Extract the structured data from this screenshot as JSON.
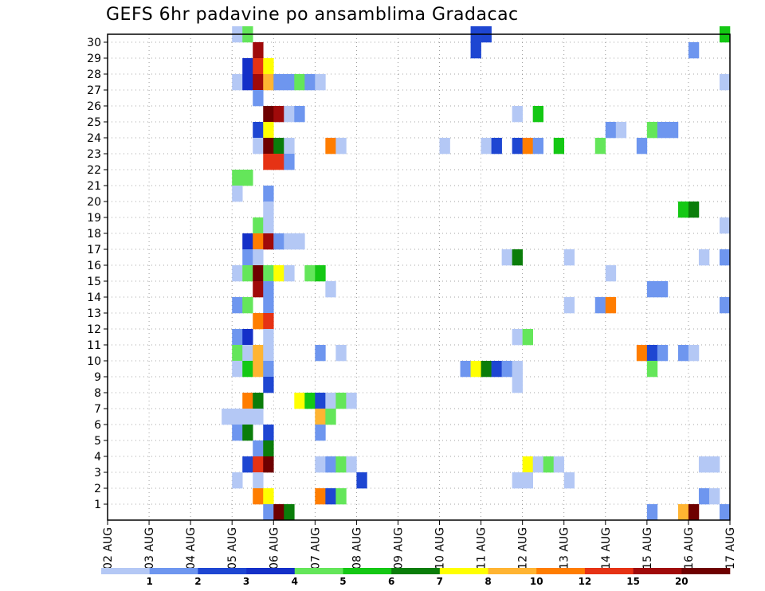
{
  "title": "GEFS 6hr padavine po ansamblima Gradacac",
  "chart_data": {
    "type": "heatmap",
    "title": "GEFS 6hr padavine po ansamblima Gradacac",
    "x_tick_labels": [
      "02 AUG",
      "03 AUG",
      "04 AUG",
      "05 AUG",
      "06 AUG",
      "07 AUG",
      "08 AUG",
      "09 AUG",
      "10 AUG",
      "11 AUG",
      "12 AUG",
      "13 AUG",
      "14 AUG",
      "15 AUG",
      "16 AUG",
      "17 AUG"
    ],
    "y_tick_labels": [
      "1",
      "2",
      "3",
      "4",
      "5",
      "6",
      "7",
      "8",
      "9",
      "10",
      "11",
      "12",
      "13",
      "14",
      "15",
      "16",
      "17",
      "18",
      "19",
      "20",
      "21",
      "22",
      "23",
      "24",
      "25",
      "26",
      "27",
      "28",
      "29",
      "30"
    ],
    "xlim": [
      "02 AUG 00Z",
      "17 AUG 00Z"
    ],
    "ylim": [
      0,
      30
    ],
    "time_step_hours": 6,
    "grid": true,
    "legend": {
      "placement": "bottom",
      "thresholds": [
        "1",
        "2",
        "3",
        "4",
        "5",
        "6",
        "7",
        "8",
        "10",
        "12",
        "15",
        "20"
      ],
      "colors": [
        "#b4c8f5",
        "#6e96ef",
        "#1e46d2",
        "#1430c8",
        "#64e65a",
        "#14c814",
        "#0a7d0a",
        "#ffff00",
        "#ffb432",
        "#ff7d00",
        "#e63214",
        "#a00a0a",
        "#6e0000"
      ]
    },
    "cells": [
      {
        "member": 30,
        "step": 12,
        "cls": 0
      },
      {
        "member": 30,
        "step": 13,
        "cls": 4
      },
      {
        "member": 30,
        "step": 35,
        "cls": 2
      },
      {
        "member": 30,
        "step": 36,
        "cls": 2
      },
      {
        "member": 30,
        "step": 59,
        "cls": 5
      },
      {
        "member": 29,
        "step": 14,
        "cls": 11
      },
      {
        "member": 29,
        "step": 35,
        "cls": 2
      },
      {
        "member": 29,
        "step": 56,
        "cls": 1
      },
      {
        "member": 28,
        "step": 13,
        "cls": 3
      },
      {
        "member": 28,
        "step": 14,
        "cls": 10
      },
      {
        "member": 28,
        "step": 15,
        "cls": 7
      },
      {
        "member": 27,
        "step": 12,
        "cls": 0
      },
      {
        "member": 27,
        "step": 13,
        "cls": 3
      },
      {
        "member": 27,
        "step": 14,
        "cls": 11
      },
      {
        "member": 27,
        "step": 15,
        "cls": 8
      },
      {
        "member": 27,
        "step": 16,
        "cls": 1
      },
      {
        "member": 27,
        "step": 17,
        "cls": 1
      },
      {
        "member": 27,
        "step": 18,
        "cls": 4
      },
      {
        "member": 27,
        "step": 19,
        "cls": 1
      },
      {
        "member": 27,
        "step": 20,
        "cls": 0
      },
      {
        "member": 27,
        "step": 59,
        "cls": 0
      },
      {
        "member": 26,
        "step": 14,
        "cls": 1
      },
      {
        "member": 25,
        "step": 15,
        "cls": 12
      },
      {
        "member": 25,
        "step": 16,
        "cls": 11
      },
      {
        "member": 25,
        "step": 17,
        "cls": 0
      },
      {
        "member": 25,
        "step": 18,
        "cls": 1
      },
      {
        "member": 25,
        "step": 39,
        "cls": 0
      },
      {
        "member": 25,
        "step": 41,
        "cls": 5
      },
      {
        "member": 24,
        "step": 14,
        "cls": 2
      },
      {
        "member": 24,
        "step": 15,
        "cls": 7
      },
      {
        "member": 24,
        "step": 48,
        "cls": 1
      },
      {
        "member": 24,
        "step": 49,
        "cls": 0
      },
      {
        "member": 24,
        "step": 52,
        "cls": 4
      },
      {
        "member": 24,
        "step": 53,
        "cls": 1
      },
      {
        "member": 24,
        "step": 54,
        "cls": 1
      },
      {
        "member": 23,
        "step": 14,
        "cls": 0
      },
      {
        "member": 23,
        "step": 15,
        "cls": 12
      },
      {
        "member": 23,
        "step": 16,
        "cls": 6
      },
      {
        "member": 23,
        "step": 17,
        "cls": 0
      },
      {
        "member": 23,
        "step": 21,
        "cls": 9
      },
      {
        "member": 23,
        "step": 22,
        "cls": 0
      },
      {
        "member": 23,
        "step": 32,
        "cls": 0
      },
      {
        "member": 23,
        "step": 36,
        "cls": 0
      },
      {
        "member": 23,
        "step": 37,
        "cls": 2
      },
      {
        "member": 23,
        "step": 39,
        "cls": 2
      },
      {
        "member": 23,
        "step": 40,
        "cls": 9
      },
      {
        "member": 23,
        "step": 41,
        "cls": 1
      },
      {
        "member": 23,
        "step": 43,
        "cls": 5
      },
      {
        "member": 23,
        "step": 47,
        "cls": 4
      },
      {
        "member": 23,
        "step": 51,
        "cls": 1
      },
      {
        "member": 22,
        "step": 15,
        "cls": 10
      },
      {
        "member": 22,
        "step": 16,
        "cls": 10
      },
      {
        "member": 22,
        "step": 17,
        "cls": 1
      },
      {
        "member": 21,
        "step": 12,
        "cls": 4
      },
      {
        "member": 21,
        "step": 13,
        "cls": 4
      },
      {
        "member": 20,
        "step": 12,
        "cls": 0
      },
      {
        "member": 20,
        "step": 15,
        "cls": 1
      },
      {
        "member": 19,
        "step": 15,
        "cls": 0
      },
      {
        "member": 19,
        "step": 55,
        "cls": 5
      },
      {
        "member": 19,
        "step": 56,
        "cls": 6
      },
      {
        "member": 18,
        "step": 14,
        "cls": 4
      },
      {
        "member": 18,
        "step": 15,
        "cls": 0
      },
      {
        "member": 18,
        "step": 59,
        "cls": 0
      },
      {
        "member": 17,
        "step": 13,
        "cls": 3
      },
      {
        "member": 17,
        "step": 14,
        "cls": 9
      },
      {
        "member": 17,
        "step": 15,
        "cls": 11
      },
      {
        "member": 17,
        "step": 16,
        "cls": 1
      },
      {
        "member": 17,
        "step": 17,
        "cls": 0
      },
      {
        "member": 17,
        "step": 18,
        "cls": 0
      },
      {
        "member": 16,
        "step": 13,
        "cls": 1
      },
      {
        "member": 16,
        "step": 14,
        "cls": 0
      },
      {
        "member": 16,
        "step": 38,
        "cls": 0
      },
      {
        "member": 16,
        "step": 39,
        "cls": 6
      },
      {
        "member": 16,
        "step": 44,
        "cls": 0
      },
      {
        "member": 16,
        "step": 57,
        "cls": 0
      },
      {
        "member": 16,
        "step": 59,
        "cls": 1
      },
      {
        "member": 15,
        "step": 12,
        "cls": 0
      },
      {
        "member": 15,
        "step": 13,
        "cls": 4
      },
      {
        "member": 15,
        "step": 14,
        "cls": 12
      },
      {
        "member": 15,
        "step": 15,
        "cls": 4
      },
      {
        "member": 15,
        "step": 16,
        "cls": 7
      },
      {
        "member": 15,
        "step": 17,
        "cls": 0
      },
      {
        "member": 15,
        "step": 19,
        "cls": 4
      },
      {
        "member": 15,
        "step": 20,
        "cls": 5
      },
      {
        "member": 15,
        "step": 48,
        "cls": 0
      },
      {
        "member": 14,
        "step": 14,
        "cls": 11
      },
      {
        "member": 14,
        "step": 15,
        "cls": 1
      },
      {
        "member": 14,
        "step": 21,
        "cls": 0
      },
      {
        "member": 14,
        "step": 52,
        "cls": 1
      },
      {
        "member": 14,
        "step": 53,
        "cls": 1
      },
      {
        "member": 13,
        "step": 12,
        "cls": 1
      },
      {
        "member": 13,
        "step": 13,
        "cls": 4
      },
      {
        "member": 13,
        "step": 15,
        "cls": 1
      },
      {
        "member": 13,
        "step": 44,
        "cls": 0
      },
      {
        "member": 13,
        "step": 47,
        "cls": 1
      },
      {
        "member": 13,
        "step": 48,
        "cls": 9
      },
      {
        "member": 13,
        "step": 59,
        "cls": 1
      },
      {
        "member": 12,
        "step": 14,
        "cls": 9
      },
      {
        "member": 12,
        "step": 15,
        "cls": 10
      },
      {
        "member": 11,
        "step": 12,
        "cls": 1
      },
      {
        "member": 11,
        "step": 13,
        "cls": 3
      },
      {
        "member": 11,
        "step": 15,
        "cls": 0
      },
      {
        "member": 11,
        "step": 39,
        "cls": 0
      },
      {
        "member": 11,
        "step": 40,
        "cls": 4
      },
      {
        "member": 10,
        "step": 12,
        "cls": 4
      },
      {
        "member": 10,
        "step": 13,
        "cls": 0
      },
      {
        "member": 10,
        "step": 14,
        "cls": 8
      },
      {
        "member": 10,
        "step": 15,
        "cls": 0
      },
      {
        "member": 10,
        "step": 20,
        "cls": 1
      },
      {
        "member": 10,
        "step": 22,
        "cls": 0
      },
      {
        "member": 10,
        "step": 51,
        "cls": 9
      },
      {
        "member": 10,
        "step": 52,
        "cls": 2
      },
      {
        "member": 10,
        "step": 53,
        "cls": 1
      },
      {
        "member": 10,
        "step": 55,
        "cls": 1
      },
      {
        "member": 10,
        "step": 56,
        "cls": 0
      },
      {
        "member": 9,
        "step": 12,
        "cls": 0
      },
      {
        "member": 9,
        "step": 13,
        "cls": 5
      },
      {
        "member": 9,
        "step": 14,
        "cls": 8
      },
      {
        "member": 9,
        "step": 15,
        "cls": 1
      },
      {
        "member": 9,
        "step": 34,
        "cls": 1
      },
      {
        "member": 9,
        "step": 35,
        "cls": 7
      },
      {
        "member": 9,
        "step": 36,
        "cls": 6
      },
      {
        "member": 9,
        "step": 37,
        "cls": 2
      },
      {
        "member": 9,
        "step": 38,
        "cls": 1
      },
      {
        "member": 9,
        "step": 39,
        "cls": 0
      },
      {
        "member": 9,
        "step": 52,
        "cls": 4
      },
      {
        "member": 8,
        "step": 15,
        "cls": 2
      },
      {
        "member": 8,
        "step": 39,
        "cls": 0
      },
      {
        "member": 7,
        "step": 13,
        "cls": 9
      },
      {
        "member": 7,
        "step": 14,
        "cls": 6
      },
      {
        "member": 7,
        "step": 18,
        "cls": 7
      },
      {
        "member": 7,
        "step": 19,
        "cls": 5
      },
      {
        "member": 7,
        "step": 20,
        "cls": 2
      },
      {
        "member": 7,
        "step": 21,
        "cls": 0
      },
      {
        "member": 7,
        "step": 22,
        "cls": 4
      },
      {
        "member": 7,
        "step": 23,
        "cls": 0
      },
      {
        "member": 6,
        "step": 11,
        "cls": 0
      },
      {
        "member": 6,
        "step": 12,
        "cls": 0
      },
      {
        "member": 6,
        "step": 13,
        "cls": 0
      },
      {
        "member": 6,
        "step": 14,
        "cls": 0
      },
      {
        "member": 6,
        "step": 20,
        "cls": 8
      },
      {
        "member": 6,
        "step": 21,
        "cls": 4
      },
      {
        "member": 5,
        "step": 12,
        "cls": 1
      },
      {
        "member": 5,
        "step": 13,
        "cls": 6
      },
      {
        "member": 5,
        "step": 15,
        "cls": 2
      },
      {
        "member": 5,
        "step": 20,
        "cls": 1
      },
      {
        "member": 4,
        "step": 14,
        "cls": 1
      },
      {
        "member": 4,
        "step": 15,
        "cls": 6
      },
      {
        "member": 3,
        "step": 13,
        "cls": 2
      },
      {
        "member": 3,
        "step": 14,
        "cls": 10
      },
      {
        "member": 3,
        "step": 15,
        "cls": 12
      },
      {
        "member": 3,
        "step": 20,
        "cls": 0
      },
      {
        "member": 3,
        "step": 21,
        "cls": 1
      },
      {
        "member": 3,
        "step": 22,
        "cls": 4
      },
      {
        "member": 3,
        "step": 23,
        "cls": 0
      },
      {
        "member": 3,
        "step": 40,
        "cls": 7
      },
      {
        "member": 3,
        "step": 41,
        "cls": 0
      },
      {
        "member": 3,
        "step": 42,
        "cls": 4
      },
      {
        "member": 3,
        "step": 43,
        "cls": 0
      },
      {
        "member": 3,
        "step": 57,
        "cls": 0
      },
      {
        "member": 3,
        "step": 58,
        "cls": 0
      },
      {
        "member": 2,
        "step": 12,
        "cls": 0
      },
      {
        "member": 2,
        "step": 14,
        "cls": 0
      },
      {
        "member": 2,
        "step": 24,
        "cls": 2
      },
      {
        "member": 2,
        "step": 39,
        "cls": 0
      },
      {
        "member": 2,
        "step": 40,
        "cls": 0
      },
      {
        "member": 2,
        "step": 44,
        "cls": 0
      },
      {
        "member": 1,
        "step": 14,
        "cls": 9
      },
      {
        "member": 1,
        "step": 15,
        "cls": 7
      },
      {
        "member": 1,
        "step": 20,
        "cls": 9
      },
      {
        "member": 1,
        "step": 21,
        "cls": 2
      },
      {
        "member": 1,
        "step": 22,
        "cls": 4
      },
      {
        "member": 1,
        "step": 57,
        "cls": 1
      },
      {
        "member": 1,
        "step": 58,
        "cls": 0
      },
      {
        "member": 0,
        "step": 15,
        "cls": 1
      },
      {
        "member": 0,
        "step": 16,
        "cls": 12
      },
      {
        "member": 0,
        "step": 17,
        "cls": 6
      },
      {
        "member": 0,
        "step": 52,
        "cls": 1
      },
      {
        "member": 0,
        "step": 55,
        "cls": 8
      },
      {
        "member": 0,
        "step": 56,
        "cls": 12
      },
      {
        "member": 0,
        "step": 59,
        "cls": 1
      }
    ]
  }
}
